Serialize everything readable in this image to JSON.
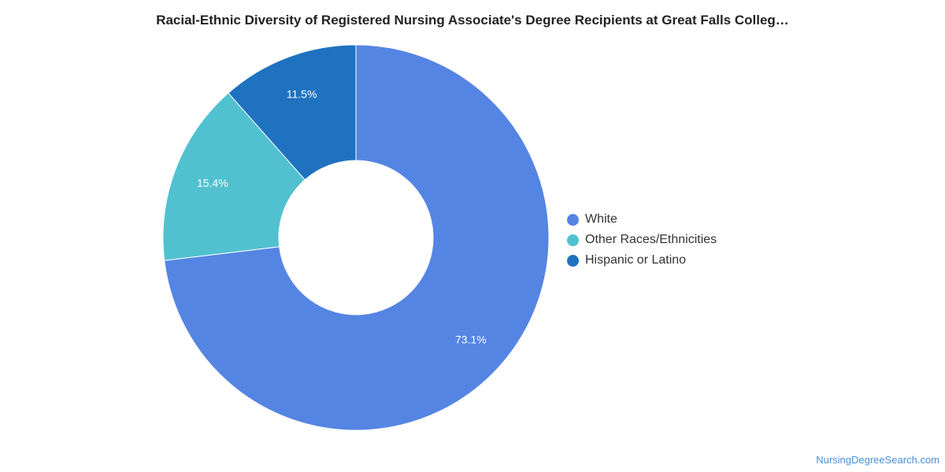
{
  "chart_data": {
    "type": "pie",
    "title": "Racial-Ethnic Diversity of Registered Nursing Associate's Degree Recipients at Great Falls Colleg…",
    "slices": [
      {
        "label": "White",
        "value": 73.1,
        "display": "73.1%",
        "color": "#5585e3"
      },
      {
        "label": "Other Races/Ethnicities",
        "value": 15.4,
        "display": "15.4%",
        "color": "#51c1cf"
      },
      {
        "label": "Hispanic or Latino",
        "value": 11.5,
        "display": "11.5%",
        "color": "#1f72bf"
      }
    ],
    "donut": true,
    "legend_position": "right"
  },
  "footer": {
    "source": "NursingDegreeSearch.com"
  }
}
